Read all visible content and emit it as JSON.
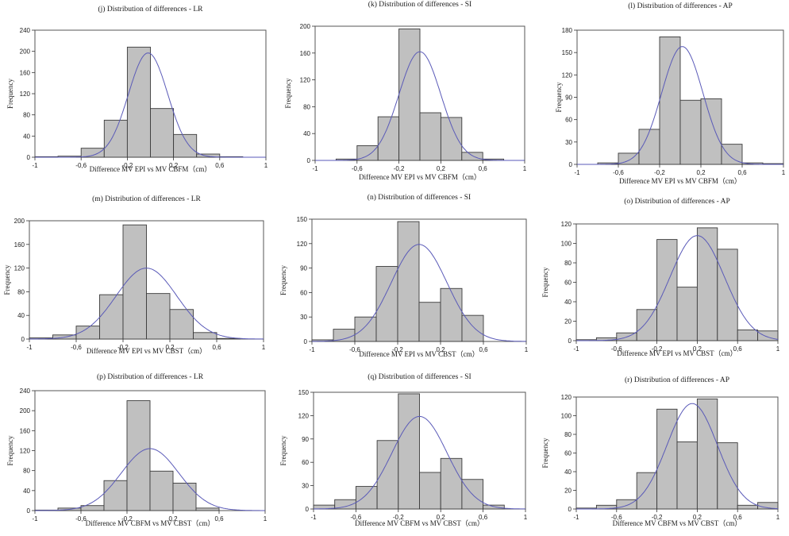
{
  "chart_data": [
    {
      "type": "bar",
      "title": "(j) Distribution of differences - LR",
      "xlabel": "Difference MV EPI vs MV CBFM（cm）",
      "ylabel": "Frequency",
      "xlim": [
        -1,
        1
      ],
      "ylim": [
        0,
        240
      ],
      "xticks": [
        "-1",
        "-0,6",
        "-0,2",
        "0,2",
        "0,6",
        "1"
      ],
      "yticks": [
        "0",
        "40",
        "80",
        "120",
        "160",
        "200",
        "240"
      ],
      "bin_edges": [
        -1,
        -0.8,
        -0.6,
        -0.4,
        -0.2,
        0,
        0.2,
        0.4,
        0.6,
        0.8,
        1
      ],
      "values": [
        1,
        2,
        17,
        70,
        208,
        92,
        43,
        6,
        1,
        0
      ],
      "curve": {
        "mean": -0.02,
        "peak": 197,
        "sd": 0.17
      }
    },
    {
      "type": "bar",
      "title": "(k) Distribution of differences - SI",
      "xlabel": "Difference MV EPI vs MV CBFM（cm）",
      "ylabel": "Frequency",
      "xlim": [
        -1,
        1
      ],
      "ylim": [
        0,
        200
      ],
      "xticks": [
        "-1",
        "-0,6",
        "-0,2",
        "0,2",
        "0,6",
        "1"
      ],
      "yticks": [
        "0",
        "40",
        "80",
        "120",
        "160",
        "200"
      ],
      "bin_edges": [
        -1,
        -0.8,
        -0.6,
        -0.4,
        -0.2,
        0,
        0.2,
        0.4,
        0.6,
        0.8,
        1
      ],
      "values": [
        0,
        2,
        22,
        65,
        196,
        71,
        64,
        12,
        2,
        0
      ],
      "curve": {
        "mean": 0,
        "peak": 162,
        "sd": 0.2
      }
    },
    {
      "type": "bar",
      "title": "(l) Distribution of differences - AP",
      "xlabel": "Difference MV EPI vs MV CBFM（cm）",
      "ylabel": "Frequency",
      "xlim": [
        -1,
        1
      ],
      "ylim": [
        0,
        180
      ],
      "xticks": [
        "-1",
        "-0,6",
        "-0,2",
        "0,2",
        "0,6",
        "1"
      ],
      "yticks": [
        "0",
        "30",
        "60",
        "90",
        "120",
        "150",
        "180"
      ],
      "bin_edges": [
        -1,
        -0.8,
        -0.6,
        -0.4,
        -0.2,
        0,
        0.2,
        0.4,
        0.6,
        0.8,
        1
      ],
      "values": [
        0,
        2,
        15,
        47,
        171,
        86,
        88,
        27,
        2,
        1
      ],
      "curve": {
        "mean": 0.02,
        "peak": 158,
        "sd": 0.2
      }
    },
    {
      "type": "bar",
      "title": "(m) Distribution of differences - LR",
      "xlabel": "Difference MV EPI vs MV CBST（cm）",
      "ylabel": "Frequency",
      "xlim": [
        -1,
        1
      ],
      "ylim": [
        0,
        200
      ],
      "xticks": [
        "-1",
        "-0,6",
        "-0,2",
        "0,2",
        "0,6",
        "1"
      ],
      "yticks": [
        "0",
        "40",
        "80",
        "120",
        "160",
        "200"
      ],
      "bin_edges": [
        -1,
        -0.8,
        -0.6,
        -0.4,
        -0.2,
        0,
        0.2,
        0.4,
        0.6,
        0.8,
        1
      ],
      "values": [
        2,
        7,
        22,
        75,
        193,
        77,
        50,
        11,
        1,
        0
      ],
      "curve": {
        "mean": 0,
        "peak": 120,
        "sd": 0.26
      }
    },
    {
      "type": "bar",
      "title": "(n) Distribution of differences - SI",
      "xlabel": "Difference MV EPI vs MV CBST（cm）",
      "ylabel": "Frequency",
      "xlim": [
        -1,
        1
      ],
      "ylim": [
        0,
        150
      ],
      "xticks": [
        "-1",
        "-0,6",
        "-0,2",
        "0,2",
        "0,6",
        "1"
      ],
      "yticks": [
        "0",
        "30",
        "60",
        "90",
        "120",
        "150"
      ],
      "bin_edges": [
        -1,
        -0.8,
        -0.6,
        -0.4,
        -0.2,
        0,
        0.2,
        0.4,
        0.6,
        0.8,
        1
      ],
      "values": [
        2,
        15,
        30,
        92,
        147,
        48,
        65,
        32,
        0,
        0
      ],
      "curve": {
        "mean": 0,
        "peak": 119,
        "sd": 0.26
      }
    },
    {
      "type": "bar",
      "title": "(o) Distribution of differences - AP",
      "xlabel": "Difference MV EPI vs MV CBST（cm）",
      "ylabel": "Frequency",
      "xlim": [
        -1,
        1
      ],
      "ylim": [
        0,
        120
      ],
      "xticks": [
        "-1",
        "-0,6",
        "-0,2",
        "0,2",
        "0,6",
        "1"
      ],
      "yticks": [
        "0",
        "20",
        "40",
        "60",
        "80",
        "100",
        "120"
      ],
      "bin_edges": [
        -1,
        -0.8,
        -0.6,
        -0.4,
        -0.2,
        0,
        0.2,
        0.4,
        0.6,
        0.8,
        1
      ],
      "values": [
        1,
        3,
        8,
        32,
        104,
        55,
        116,
        94,
        11,
        10
      ],
      "curve": {
        "mean": 0.2,
        "peak": 108,
        "sd": 0.27
      }
    },
    {
      "type": "bar",
      "title": "(p) Distribution of differences - LR",
      "xlabel": "Difference MV CBFM vs MV CBST（cm）",
      "ylabel": "Frequency",
      "xlim": [
        -1,
        1
      ],
      "ylim": [
        0,
        240
      ],
      "xticks": [
        "-1",
        "-0,6",
        "-0,2",
        "0,2",
        "0,6",
        "1"
      ],
      "yticks": [
        "0",
        "40",
        "80",
        "120",
        "160",
        "200",
        "240"
      ],
      "bin_edges": [
        -1,
        -0.8,
        -0.6,
        -0.4,
        -0.2,
        0,
        0.2,
        0.4,
        0.6,
        0.8,
        1
      ],
      "values": [
        1,
        5,
        10,
        60,
        220,
        79,
        55,
        5,
        0,
        0
      ],
      "curve": {
        "mean": 0,
        "peak": 124,
        "sd": 0.25
      }
    },
    {
      "type": "bar",
      "title": "(q) Distribution of differences - SI",
      "xlabel": "Difference MV CBFM vs MV CBST（cm）",
      "ylabel": "Frequency",
      "xlim": [
        -1,
        1
      ],
      "ylim": [
        0,
        150
      ],
      "xticks": [
        "-1",
        "-0,6",
        "-0,2",
        "0,2",
        "0,6",
        "1"
      ],
      "yticks": [
        "0",
        "30",
        "60",
        "90",
        "120",
        "150"
      ],
      "bin_edges": [
        -1,
        -0.8,
        -0.6,
        -0.4,
        -0.2,
        0,
        0.2,
        0.4,
        0.6,
        0.8,
        1
      ],
      "values": [
        5,
        12,
        29,
        88,
        148,
        47,
        65,
        38,
        5,
        0
      ],
      "curve": {
        "mean": 0,
        "peak": 119,
        "sd": 0.26
      }
    },
    {
      "type": "bar",
      "title": "(r) Distribution of differences - AP",
      "xlabel": "Difference MV CBFM vs MV CBST（cm）",
      "ylabel": "Frequency",
      "xlim": [
        -1,
        1
      ],
      "ylim": [
        0,
        120
      ],
      "xticks": [
        "-1",
        "-0,6",
        "-0,2",
        "0,2",
        "0,6",
        "1"
      ],
      "yticks": [
        "0",
        "20",
        "40",
        "60",
        "80",
        "100",
        "120"
      ],
      "bin_edges": [
        -1,
        -0.8,
        -0.6,
        -0.4,
        -0.2,
        0,
        0.2,
        0.4,
        0.6,
        0.8,
        1
      ],
      "values": [
        1,
        4,
        10,
        39,
        107,
        72,
        118,
        71,
        4,
        7
      ],
      "curve": {
        "mean": 0.15,
        "peak": 113,
        "sd": 0.25
      }
    }
  ],
  "style": {
    "bar_fill": "#c0c0c0",
    "bar_stroke": "#3a3a3a",
    "curve_color": "#5a5ab8",
    "plot_bg": "#ffffff"
  }
}
